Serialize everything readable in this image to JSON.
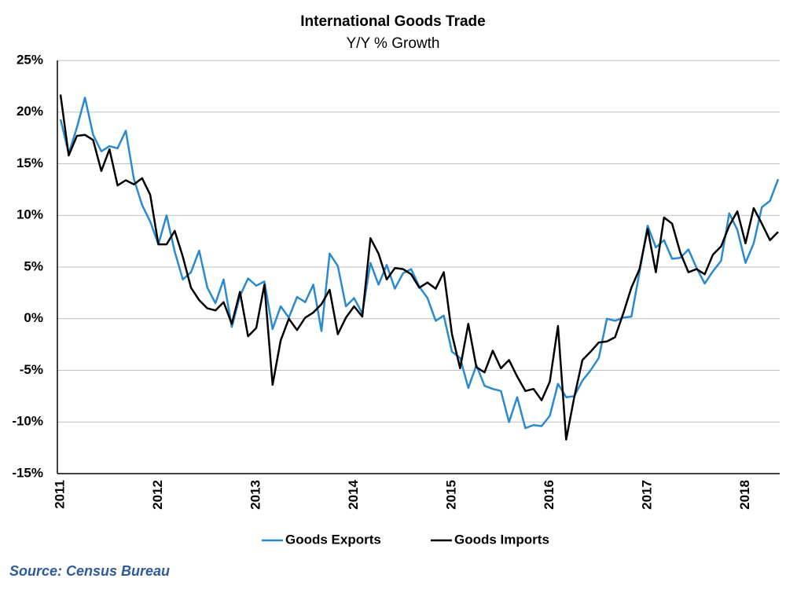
{
  "chart_data": {
    "type": "line",
    "title": "International Goods Trade",
    "subtitle": "Y/Y % Growth",
    "source": "Source: Census Bureau",
    "categories": [
      "2011",
      null,
      null,
      null,
      null,
      null,
      null,
      null,
      null,
      null,
      null,
      null,
      "2012",
      null,
      null,
      null,
      null,
      null,
      null,
      null,
      null,
      null,
      null,
      null,
      "2013",
      null,
      null,
      null,
      null,
      null,
      null,
      null,
      null,
      null,
      null,
      null,
      "2014",
      null,
      null,
      null,
      null,
      null,
      null,
      null,
      null,
      null,
      null,
      null,
      "2015",
      null,
      null,
      null,
      null,
      null,
      null,
      null,
      null,
      null,
      null,
      null,
      "2016",
      null,
      null,
      null,
      null,
      null,
      null,
      null,
      null,
      null,
      null,
      null,
      "2017",
      null,
      null,
      null,
      null,
      null,
      null,
      null,
      null,
      null,
      null,
      null,
      "2018",
      null,
      null,
      null,
      null
    ],
    "series": [
      {
        "name": "Goods Exports",
        "color": "#2a8ad0",
        "values": [
          19.3,
          16.0,
          18.5,
          21.4,
          17.8,
          16.2,
          16.7,
          16.5,
          18.2,
          13.5,
          11.0,
          9.4,
          7.2,
          10.0,
          6.5,
          3.8,
          4.5,
          6.6,
          3.0,
          1.5,
          3.8,
          -0.8,
          2.2,
          3.9,
          3.2,
          3.6,
          -1.0,
          1.2,
          0.1,
          2.1,
          1.6,
          3.3,
          -1.2,
          6.3,
          5.1,
          1.2,
          2.0,
          0.5,
          5.4,
          3.3,
          5.2,
          2.9,
          4.4,
          4.8,
          3.1,
          2.0,
          -0.2,
          0.3,
          -3.2,
          -3.8,
          -6.7,
          -4.5,
          -6.5,
          -6.8,
          -7.0,
          -10.0,
          -7.6,
          -10.6,
          -10.3,
          -10.4,
          -9.4,
          -6.3,
          -7.6,
          -7.5,
          -6.0,
          -5.0,
          -3.8,
          0.0,
          -0.2,
          0.1,
          0.2,
          4.5,
          9.0,
          6.9,
          7.6,
          5.8,
          5.9,
          6.7,
          4.9,
          3.4,
          4.6,
          5.6,
          10.2,
          8.6,
          5.4,
          7.3,
          10.8,
          11.4,
          13.5
        ]
      },
      {
        "name": "Goods Imports",
        "color": "#000000",
        "values": [
          21.7,
          15.8,
          17.7,
          17.8,
          17.3,
          14.3,
          16.4,
          12.9,
          13.4,
          13.0,
          13.6,
          12.0,
          7.2,
          7.2,
          8.5,
          6.0,
          3.0,
          1.8,
          1.0,
          0.8,
          1.6,
          -0.5,
          2.6,
          -1.7,
          -0.9,
          3.3,
          -6.4,
          -2.1,
          0.0,
          -1.1,
          0.1,
          0.6,
          1.4,
          2.8,
          -1.5,
          0.1,
          1.2,
          0.2,
          7.8,
          6.3,
          3.8,
          4.9,
          4.8,
          4.3,
          3.0,
          3.5,
          2.9,
          4.5,
          -1.5,
          -4.8,
          -0.5,
          -4.7,
          -5.2,
          -3.1,
          -4.8,
          -4.0,
          -5.6,
          -7.0,
          -6.8,
          -7.9,
          -6.1,
          -0.7,
          -11.7,
          -7.6,
          -4.0,
          -3.2,
          -2.3,
          -2.2,
          -1.8,
          0.5,
          3.0,
          4.8,
          8.7,
          4.5,
          9.8,
          9.2,
          6.4,
          4.5,
          4.8,
          4.3,
          6.2,
          7.0,
          9.0,
          10.4,
          7.3,
          10.7,
          9.2,
          7.6,
          8.4
        ]
      }
    ],
    "ylim": [
      -15,
      25
    ],
    "yticks": [
      {
        "value": -15,
        "label": "-15%"
      },
      {
        "value": -10,
        "label": "-10%"
      },
      {
        "value": -5,
        "label": "-5%"
      },
      {
        "value": 0,
        "label": "0%"
      },
      {
        "value": 5,
        "label": "5%"
      },
      {
        "value": 10,
        "label": "10%"
      },
      {
        "value": 15,
        "label": "15%"
      },
      {
        "value": 20,
        "label": "20%"
      },
      {
        "value": 25,
        "label": "25%"
      }
    ],
    "grid": true,
    "legend": "bottom"
  }
}
